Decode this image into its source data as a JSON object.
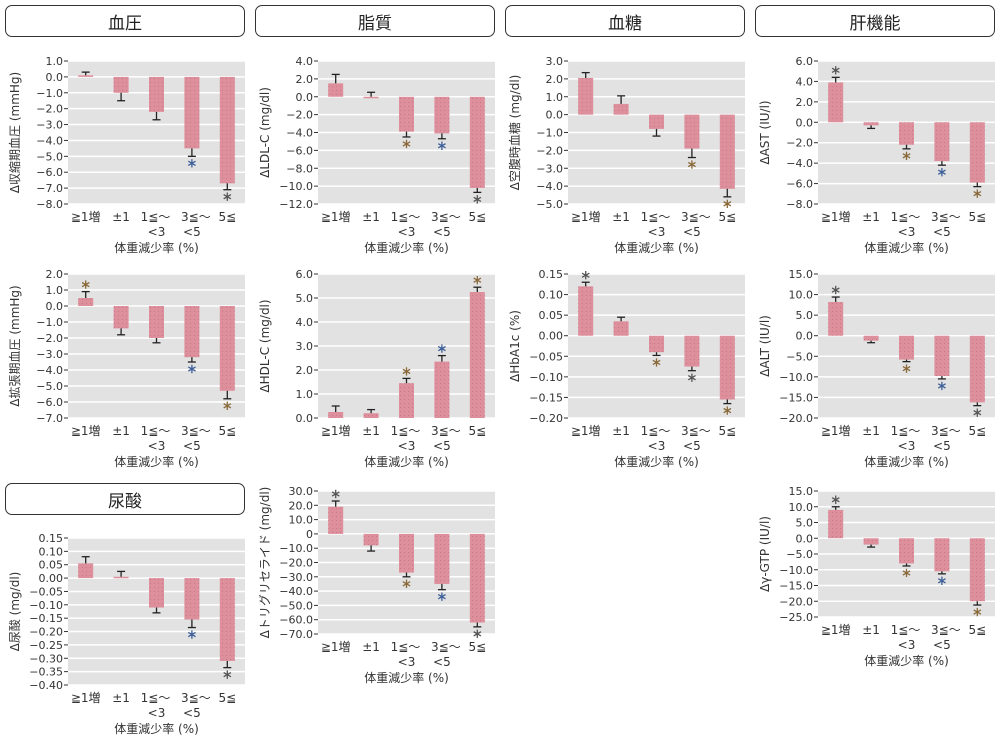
{
  "headers": [
    "血圧",
    "脂質",
    "血糖",
    "肝機能",
    "尿酸"
  ],
  "colors": {
    "bar": "#de8f9c",
    "bg": "#e2e2e2",
    "grid": "#ffffff",
    "sig_blue": "#3d5f98",
    "sig_brown": "#8a6a3a",
    "sig_dark": "#555555"
  },
  "chart_data": [
    {
      "id": "sbp",
      "type": "bar",
      "ylabel": "Δ収縮期血圧 (mmHg)",
      "xlabel": "体重減少率 (%)",
      "categories": [
        "≧1増",
        "±1",
        "1≦～\n<3",
        "3≦～\n<5",
        "5≦"
      ],
      "ylim": [
        -8,
        1
      ],
      "ticks": [
        1,
        0,
        -1,
        -2,
        -3,
        -4,
        -5,
        -6,
        -7,
        -8
      ],
      "tick_labels": [
        "1.0",
        "0.0",
        "−1.0",
        "−2.0",
        "−3.0",
        "−4.0",
        "−5.0",
        "−6.0",
        "−7.0",
        "−8.0"
      ],
      "values": [
        0.1,
        -1.0,
        -2.2,
        -4.5,
        -6.7
      ],
      "errors": [
        0.2,
        0.5,
        0.5,
        0.5,
        0.4
      ],
      "significance": [
        "",
        "",
        "",
        "blue",
        "dark"
      ]
    },
    {
      "id": "dbp",
      "type": "bar",
      "ylabel": "Δ拡張期血圧 (mmHg)",
      "xlabel": "体重減少率 (%)",
      "categories": [
        "≧1増",
        "±1",
        "1≦～\n<3",
        "3≦～\n<5",
        "5≦"
      ],
      "ylim": [
        -7,
        2
      ],
      "ticks": [
        2,
        1,
        0,
        -1,
        -2,
        -3,
        -4,
        -5,
        -6,
        -7
      ],
      "tick_labels": [
        "2.0",
        "1.0",
        "0.0",
        "−1.0",
        "−2.0",
        "−3.0",
        "−4.0",
        "−5.0",
        "−6.0",
        "−7.0"
      ],
      "values": [
        0.5,
        -1.4,
        -2.0,
        -3.2,
        -5.3
      ],
      "errors": [
        0.4,
        0.4,
        0.3,
        0.3,
        0.5
      ],
      "significance": [
        "brown",
        "",
        "",
        "blue",
        "brown"
      ]
    },
    {
      "id": "ua",
      "type": "bar",
      "ylabel": "Δ尿酸 (mg/dl)",
      "xlabel": "体重減少率 (%)",
      "categories": [
        "≧1増",
        "±1",
        "1≦～\n<3",
        "3≦～\n<5",
        "5≦"
      ],
      "ylim": [
        -0.4,
        0.15
      ],
      "ticks": [
        0.15,
        0.1,
        0.05,
        0,
        -0.05,
        -0.1,
        -0.15,
        -0.2,
        -0.25,
        -0.3,
        -0.35,
        -0.4
      ],
      "tick_labels": [
        "0.15",
        "0.10",
        "0.05",
        "0.00",
        "−0.05",
        "−0.10",
        "−0.15",
        "−0.20",
        "−0.25",
        "−0.30",
        "−0.35",
        "−0.40"
      ],
      "values": [
        0.055,
        0.005,
        -0.11,
        -0.155,
        -0.31
      ],
      "errors": [
        0.025,
        0.02,
        0.02,
        0.03,
        0.025
      ],
      "significance": [
        "",
        "",
        "",
        "blue",
        "dark"
      ]
    },
    {
      "id": "ldl",
      "type": "bar",
      "ylabel": "ΔLDL-C (mg/dl)",
      "xlabel": "体重減少率 (%)",
      "categories": [
        "≧1増",
        "±1",
        "1≦～\n<3",
        "3≦～\n<5",
        "5≦"
      ],
      "ylim": [
        -12,
        4
      ],
      "ticks": [
        4,
        2,
        0,
        -2,
        -4,
        -6,
        -8,
        -10,
        -12
      ],
      "tick_labels": [
        "4.0",
        "2.0",
        "0.0",
        "−2.0",
        "−4.0",
        "−6.0",
        "−8.0",
        "−10.0",
        "−12.0"
      ],
      "values": [
        1.5,
        0.0,
        -3.9,
        -4.1,
        -10.2
      ],
      "errors": [
        1.0,
        0.5,
        0.6,
        0.6,
        0.5
      ],
      "significance": [
        "",
        "",
        "brown",
        "blue",
        "dark"
      ]
    },
    {
      "id": "hdl",
      "type": "bar",
      "ylabel": "ΔHDL-C (mg/dl)",
      "xlabel": "体重減少率 (%)",
      "categories": [
        "≧1増",
        "±1",
        "1≦～\n<3",
        "3≦～\n<5",
        "5≦"
      ],
      "ylim": [
        0,
        6
      ],
      "ticks": [
        6,
        5,
        4,
        3,
        2,
        1,
        0
      ],
      "tick_labels": [
        "6.0",
        "5.0",
        "4.0",
        "3.0",
        "2.0",
        "1.0",
        "0.0"
      ],
      "values": [
        0.25,
        0.2,
        1.45,
        2.35,
        5.25
      ],
      "errors": [
        0.25,
        0.15,
        0.2,
        0.25,
        0.2
      ],
      "significance": [
        "",
        "",
        "brown",
        "blue",
        "brown"
      ]
    },
    {
      "id": "tg",
      "type": "bar",
      "ylabel": "Δトリグリセライド (mg/dl)",
      "xlabel": "体重減少率 (%)",
      "categories": [
        "≧1増",
        "±1",
        "1≦～\n<3",
        "3≦～\n<5",
        "5≦"
      ],
      "ylim": [
        -70,
        30
      ],
      "ticks": [
        30,
        20,
        10,
        0,
        -10,
        -20,
        -30,
        -40,
        -50,
        -60,
        -70
      ],
      "tick_labels": [
        "30.0",
        "20.0",
        "10.0",
        "0",
        "−10.0",
        "−20.0",
        "−30.0",
        "−40.0",
        "−50.0",
        "−60.0",
        "−70.0"
      ],
      "values": [
        19,
        -8,
        -27,
        -35,
        -62
      ],
      "errors": [
        4,
        4,
        3,
        4,
        3
      ],
      "significance": [
        "dark",
        "",
        "brown",
        "blue",
        "dark"
      ]
    },
    {
      "id": "fbg",
      "type": "bar",
      "ylabel": "Δ空腹時血糖 (mg/dl)",
      "xlabel": "体重減少率 (%)",
      "categories": [
        "≧1増",
        "±1",
        "1≦～\n<3",
        "3≦～\n<5",
        "5≦"
      ],
      "ylim": [
        -5,
        3
      ],
      "ticks": [
        3,
        2,
        1,
        0,
        -1,
        -2,
        -3,
        -4,
        -5
      ],
      "tick_labels": [
        "3.0",
        "2.0",
        "1.0",
        "0.0",
        "−1.0",
        "−2.0",
        "−3.0",
        "−4.0",
        "−5.0"
      ],
      "values": [
        2.05,
        0.6,
        -0.8,
        -1.9,
        -4.15
      ],
      "errors": [
        0.3,
        0.45,
        0.4,
        0.5,
        0.45
      ],
      "significance": [
        "",
        "",
        "",
        "brown",
        "brown"
      ]
    },
    {
      "id": "hba1c",
      "type": "bar",
      "ylabel": "ΔHbA1c (%)",
      "xlabel": "体重減少率 (%)",
      "categories": [
        "≧1増",
        "±1",
        "1≦～\n<3",
        "3≦～\n<5",
        "5≦"
      ],
      "ylim": [
        -0.2,
        0.15
      ],
      "ticks": [
        0.15,
        0.1,
        0.05,
        0,
        -0.05,
        -0.1,
        -0.15,
        -0.2
      ],
      "tick_labels": [
        "0.15",
        "0.10",
        "0.05",
        "0.00",
        "−0.05",
        "−0.10",
        "−0.15",
        "−0.20"
      ],
      "values": [
        0.12,
        0.035,
        -0.04,
        -0.075,
        -0.155
      ],
      "errors": [
        0.01,
        0.01,
        0.008,
        0.01,
        0.01
      ],
      "significance": [
        "dark",
        "",
        "brown",
        "dark",
        "brown"
      ]
    },
    {
      "id": "ast",
      "type": "bar",
      "ylabel": "ΔAST (IU/l)",
      "xlabel": "体重減少率 (%)",
      "categories": [
        "≧1増",
        "±1",
        "1≦～\n<3",
        "3≦～\n<5",
        "5≦"
      ],
      "ylim": [
        -8,
        6
      ],
      "ticks": [
        6,
        4,
        2,
        0,
        -2,
        -4,
        -6,
        -8
      ],
      "tick_labels": [
        "6.0",
        "4.0",
        "2.0",
        "0.0",
        "−2.0",
        "−4.0",
        "−6.0",
        "−8.0"
      ],
      "values": [
        3.9,
        -0.3,
        -2.2,
        -3.8,
        -5.9
      ],
      "errors": [
        0.5,
        0.3,
        0.4,
        0.4,
        0.4
      ],
      "significance": [
        "dark",
        "",
        "brown",
        "blue",
        "brown"
      ]
    },
    {
      "id": "alt",
      "type": "bar",
      "ylabel": "ΔALT (IU/l)",
      "xlabel": "体重減少率 (%)",
      "categories": [
        "≧1増",
        "±1",
        "1≦～\n<3",
        "3≦～\n<5",
        "5≦"
      ],
      "ylim": [
        -20,
        15
      ],
      "ticks": [
        15,
        10,
        5,
        0,
        -5,
        -10,
        -15,
        -20
      ],
      "tick_labels": [
        "15.0",
        "10.0",
        "5.0",
        "0.0",
        "−5.0",
        "−10.0",
        "−15.0",
        "−20.0"
      ],
      "values": [
        8.2,
        -1.2,
        -5.8,
        -9.8,
        -16.2
      ],
      "errors": [
        1.2,
        0.5,
        0.5,
        0.7,
        0.8
      ],
      "significance": [
        "dark",
        "",
        "brown",
        "blue",
        "dark"
      ]
    },
    {
      "id": "ggtp",
      "type": "bar",
      "ylabel": "Δγ-GTP (IU/l)",
      "xlabel": "体重減少率 (%)",
      "categories": [
        "≧1増",
        "±1",
        "1≦～\n<3",
        "3≦～\n<5",
        "5≦"
      ],
      "ylim": [
        -25,
        15
      ],
      "ticks": [
        15,
        10,
        5,
        0,
        -5,
        -10,
        -15,
        -20,
        -25
      ],
      "tick_labels": [
        "15.0",
        "10.0",
        "5.0",
        "0.0",
        "−5.0",
        "−10.0",
        "−15.0",
        "−20.0",
        "−25.0"
      ],
      "values": [
        9,
        -2,
        -8,
        -10.5,
        -20
      ],
      "errors": [
        1,
        0.8,
        0.8,
        0.8,
        1.2
      ],
      "significance": [
        "dark",
        "",
        "brown",
        "blue",
        "brown"
      ]
    }
  ]
}
